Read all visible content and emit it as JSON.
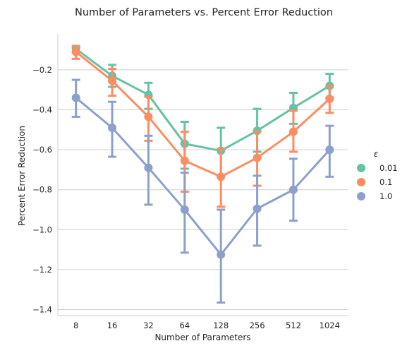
{
  "chart_data": {
    "type": "line",
    "title": "Number of Parameters vs. Percent Error Reduction",
    "xlabel": "Number of Parameters",
    "ylabel": "Percent Error Reduction",
    "categories": [
      "8",
      "16",
      "32",
      "64",
      "128",
      "256",
      "512",
      "1024"
    ],
    "ylim": [
      -1.43,
      -0.02
    ],
    "yticks": [
      -1.4,
      -1.2,
      -1.0,
      -0.8,
      -0.6,
      -0.4,
      -0.2
    ],
    "ytick_labels": [
      "−1.4",
      "−1.2",
      "−1.0",
      "−0.8",
      "−0.6",
      "−0.4",
      "−0.2"
    ],
    "grid": "horizontal",
    "legend_title": "ε",
    "legend_position": "right",
    "series": [
      {
        "name": "0.01",
        "color": "#66c2a5",
        "values": [
          -0.095,
          -0.23,
          -0.325,
          -0.57,
          -0.605,
          -0.505,
          -0.39,
          -0.28
        ],
        "err_low": [
          -0.11,
          -0.285,
          -0.395,
          -0.695,
          -0.73,
          -0.61,
          -0.47,
          -0.34
        ],
        "err_high": [
          -0.085,
          -0.175,
          -0.265,
          -0.46,
          -0.49,
          -0.395,
          -0.315,
          -0.22
        ]
      },
      {
        "name": "0.1",
        "color": "#fc8d62",
        "values": [
          -0.11,
          -0.255,
          -0.435,
          -0.655,
          -0.735,
          -0.64,
          -0.51,
          -0.345
        ],
        "err_low": [
          -0.145,
          -0.33,
          -0.555,
          -0.81,
          -0.885,
          -0.78,
          -0.61,
          -0.415
        ],
        "err_high": [
          -0.08,
          -0.195,
          -0.335,
          -0.51,
          -0.595,
          -0.51,
          -0.405,
          -0.28
        ]
      },
      {
        "name": "1.0",
        "color": "#8da0cb",
        "values": [
          -0.34,
          -0.49,
          -0.69,
          -0.9,
          -1.125,
          -0.895,
          -0.8,
          -0.6
        ],
        "err_low": [
          -0.435,
          -0.635,
          -0.875,
          -1.115,
          -1.365,
          -1.08,
          -0.955,
          -0.735
        ],
        "err_high": [
          -0.25,
          -0.36,
          -0.53,
          -0.715,
          -0.9,
          -0.73,
          -0.645,
          -0.48
        ]
      }
    ]
  }
}
